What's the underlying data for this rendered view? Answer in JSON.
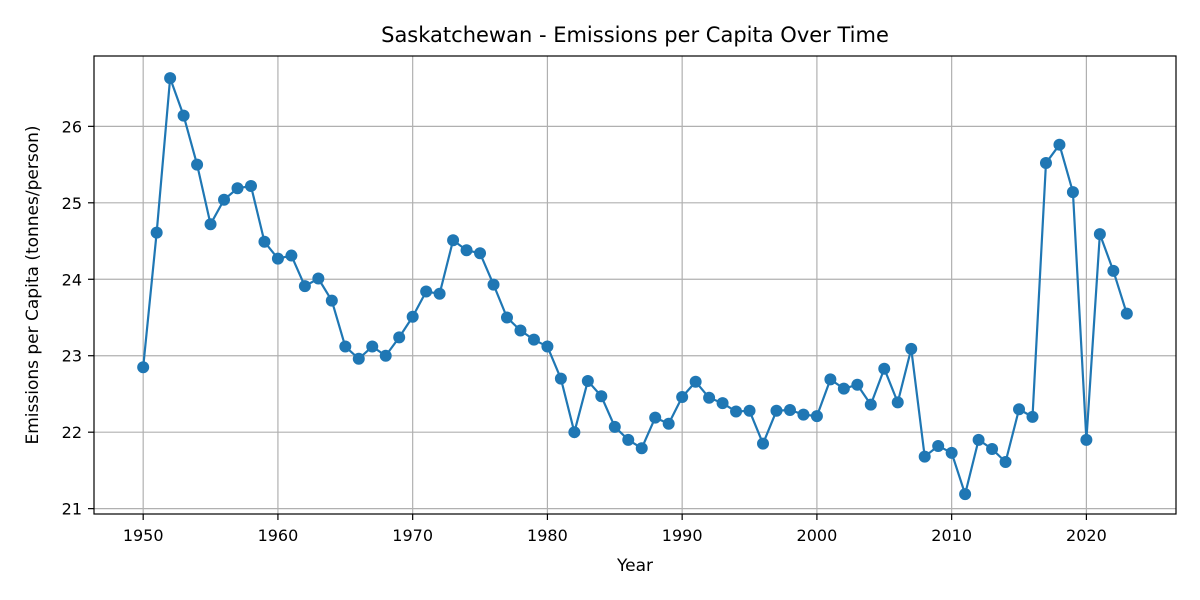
{
  "chart_data": {
    "type": "line",
    "title": "Saskatchewan - Emissions per Capita Over Time",
    "xlabel": "Year",
    "ylabel": "Emissions per Capita (tonnes/person)",
    "xlim": [
      1946.35,
      2026.65
    ],
    "ylim": [
      20.93,
      26.92
    ],
    "xticks": [
      1950,
      1960,
      1970,
      1980,
      1990,
      2000,
      2010,
      2020
    ],
    "yticks": [
      21,
      22,
      23,
      24,
      25,
      26
    ],
    "grid": true,
    "marker": "circle",
    "color": "#1f77b4",
    "x": [
      1950,
      1951,
      1952,
      1953,
      1954,
      1955,
      1956,
      1957,
      1958,
      1959,
      1960,
      1961,
      1962,
      1963,
      1964,
      1965,
      1966,
      1967,
      1968,
      1969,
      1970,
      1971,
      1972,
      1973,
      1974,
      1975,
      1976,
      1977,
      1978,
      1979,
      1980,
      1981,
      1982,
      1983,
      1984,
      1985,
      1986,
      1987,
      1988,
      1989,
      1990,
      1991,
      1992,
      1993,
      1994,
      1995,
      1996,
      1997,
      1998,
      1999,
      2000,
      2001,
      2002,
      2003,
      2004,
      2005,
      2006,
      2007,
      2008,
      2009,
      2010,
      2011,
      2012,
      2013,
      2014,
      2015,
      2016,
      2017,
      2018,
      2019,
      2020,
      2021,
      2022,
      2023
    ],
    "y": [
      22.85,
      24.61,
      26.63,
      26.14,
      25.5,
      24.72,
      25.04,
      25.19,
      25.22,
      24.49,
      24.27,
      24.31,
      23.91,
      24.01,
      23.72,
      23.12,
      22.96,
      23.12,
      23.0,
      23.24,
      23.51,
      23.84,
      23.81,
      24.51,
      24.38,
      24.34,
      23.93,
      23.5,
      23.33,
      23.21,
      23.12,
      22.7,
      22.0,
      22.67,
      22.47,
      22.07,
      21.9,
      21.79,
      22.19,
      22.11,
      22.46,
      22.66,
      22.45,
      22.38,
      22.27,
      22.28,
      21.85,
      22.28,
      22.29,
      22.23,
      22.21,
      22.69,
      22.57,
      22.62,
      22.36,
      22.83,
      22.39,
      23.09,
      21.68,
      21.82,
      21.73,
      21.19,
      21.9,
      21.78,
      21.61,
      22.3,
      22.2,
      25.52,
      25.76,
      25.14,
      21.9,
      24.59,
      24.11,
      23.55
    ]
  }
}
